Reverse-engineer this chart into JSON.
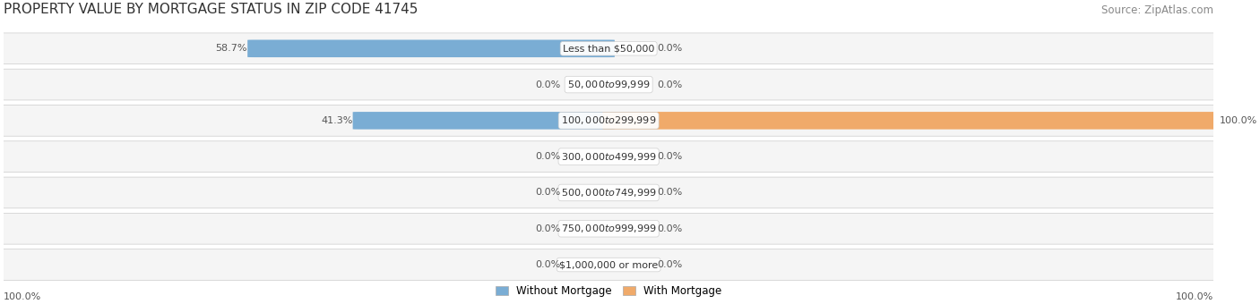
{
  "title": "PROPERTY VALUE BY MORTGAGE STATUS IN ZIP CODE 41745",
  "source": "Source: ZipAtlas.com",
  "categories": [
    "Less than $50,000",
    "$50,000 to $99,999",
    "$100,000 to $299,999",
    "$300,000 to $499,999",
    "$500,000 to $749,999",
    "$750,000 to $999,999",
    "$1,000,000 or more"
  ],
  "without_mortgage": [
    58.7,
    0.0,
    41.3,
    0.0,
    0.0,
    0.0,
    0.0
  ],
  "with_mortgage": [
    0.0,
    0.0,
    100.0,
    0.0,
    0.0,
    0.0,
    0.0
  ],
  "color_without": "#7aadd4",
  "color_with": "#f0aa6a",
  "label_100_left": "100.0%",
  "label_100_right": "100.0%",
  "title_fontsize": 11,
  "source_fontsize": 8.5,
  "bar_label_fontsize": 8,
  "category_fontsize": 8,
  "legend_fontsize": 8.5
}
